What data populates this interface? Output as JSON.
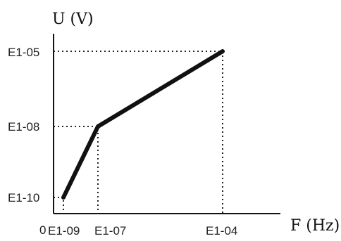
{
  "chart_data": {
    "type": "line",
    "title": "",
    "xlabel": "F (Hz)",
    "ylabel": "U (V)",
    "origin_label": "0",
    "x_ticks": [
      "E1-09",
      "E1-07",
      "E1-04"
    ],
    "y_ticks": [
      "E1-10",
      "E1-08",
      "E1-05"
    ],
    "series": [
      {
        "points": [
          {
            "x": "E1-09",
            "y": "E1-10"
          },
          {
            "x": "E1-07",
            "y": "E1-08"
          },
          {
            "x": "E1-04",
            "y": "E1-05"
          }
        ]
      }
    ],
    "guides": "dotted lines from each point to both axes",
    "grid": false,
    "legend": "none"
  }
}
